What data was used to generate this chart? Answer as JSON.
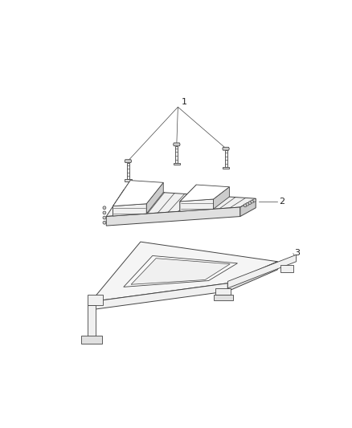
{
  "background_color": "#ffffff",
  "fig_width": 4.38,
  "fig_height": 5.33,
  "dpi": 100,
  "line_color": "#444444",
  "label_color": "#222222",
  "label_fontsize": 8,
  "item_labels": [
    "1",
    "2",
    "3"
  ],
  "light_fill": "#f0f0f0",
  "mid_fill": "#e0e0e0",
  "dark_fill": "#cccccc",
  "white_fill": "#ffffff"
}
